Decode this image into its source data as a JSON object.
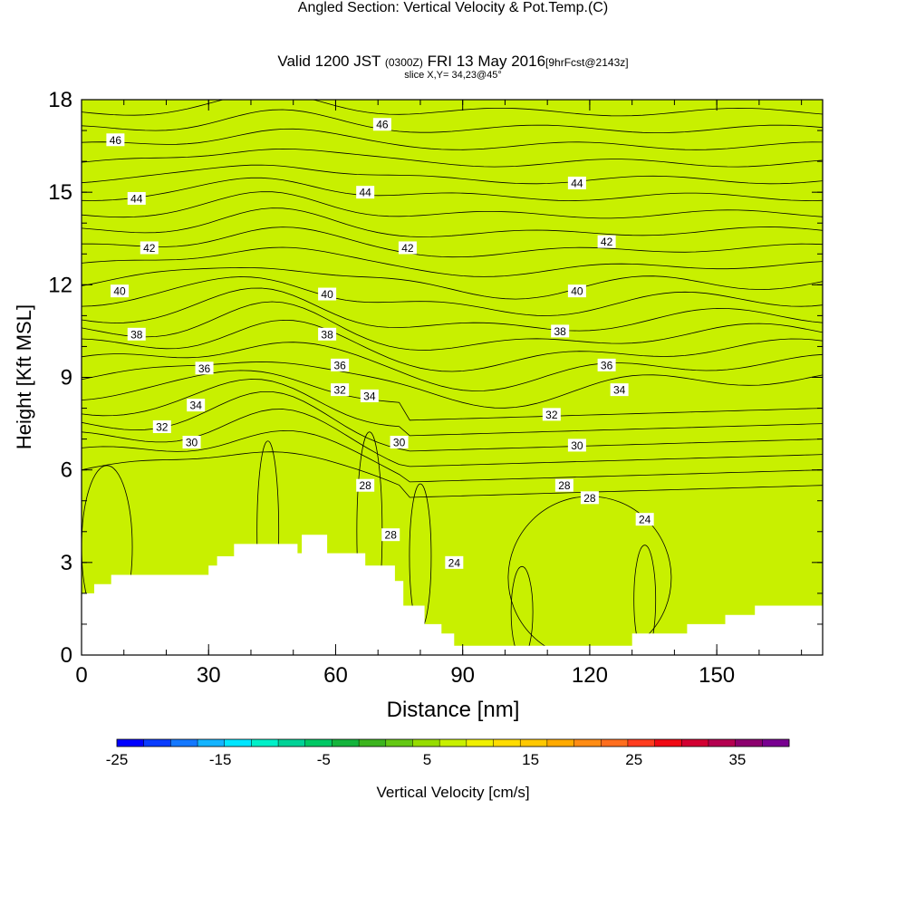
{
  "chart_data": {
    "type": "heatmap",
    "title": "Angled Section: Vertical Velocity & Pot.Temp.",
    "title_suffix": "(C)",
    "subtitle": {
      "prefix": "Valid 1200 JST",
      "utc": "(0300Z)",
      "date": "FRI 13 May 2016",
      "forecast": "[9hrFcst@2143z]"
    },
    "slice_label": "slice X,Y= 34,23@45°",
    "xlabel": "Distance [nm]",
    "ylabel": "Height [Kft MSL]",
    "xlim": [
      0,
      175
    ],
    "ylim": [
      0,
      18
    ],
    "x_ticks": [
      "0",
      "30",
      "60",
      "90",
      "120",
      "150"
    ],
    "y_ticks": [
      "0",
      "3",
      "6",
      "9",
      "12",
      "15",
      "18"
    ],
    "colorbar": {
      "label": "Vertical Velocity [cm/s]",
      "tick_labels": [
        "-25",
        "-15",
        "-5",
        "5",
        "15",
        "25",
        "35"
      ],
      "colors": [
        "#0000ff",
        "#0a3cff",
        "#1478ff",
        "#14b4ff",
        "#00e6ff",
        "#00f0c8",
        "#00d296",
        "#00c864",
        "#14b43c",
        "#3cb41e",
        "#64c814",
        "#96dc00",
        "#c8f000",
        "#f0f000",
        "#ffdc00",
        "#ffc800",
        "#ffaa00",
        "#ff8c14",
        "#ff6e1e",
        "#ff3c1e",
        "#f00a14",
        "#d20032",
        "#b40050",
        "#8c006e",
        "#780090"
      ]
    },
    "fields": {
      "velocity": "Vertical Velocity",
      "theta": "Pot.Temp."
    },
    "isentrope_labels": [
      {
        "label": "46",
        "x": 8,
        "y": 16.7
      },
      {
        "label": "46",
        "x": 71,
        "y": 17.2
      },
      {
        "label": "44",
        "x": 13,
        "y": 14.8
      },
      {
        "label": "44",
        "x": 67,
        "y": 15.0
      },
      {
        "label": "44",
        "x": 117,
        "y": 15.3
      },
      {
        "label": "42",
        "x": 16,
        "y": 13.2
      },
      {
        "label": "42",
        "x": 77,
        "y": 13.2
      },
      {
        "label": "42",
        "x": 124,
        "y": 13.4
      },
      {
        "label": "40",
        "x": 9,
        "y": 11.8
      },
      {
        "label": "40",
        "x": 58,
        "y": 11.7
      },
      {
        "label": "40",
        "x": 117,
        "y": 11.8
      },
      {
        "label": "38",
        "x": 13,
        "y": 10.4
      },
      {
        "label": "38",
        "x": 58,
        "y": 10.4
      },
      {
        "label": "38",
        "x": 113,
        "y": 10.5
      },
      {
        "label": "36",
        "x": 29,
        "y": 9.3
      },
      {
        "label": "36",
        "x": 61,
        "y": 9.4
      },
      {
        "label": "36",
        "x": 124,
        "y": 9.4
      },
      {
        "label": "34",
        "x": 27,
        "y": 8.1
      },
      {
        "label": "34",
        "x": 68,
        "y": 8.4
      },
      {
        "label": "34",
        "x": 127,
        "y": 8.6
      },
      {
        "label": "32",
        "x": 19,
        "y": 7.4
      },
      {
        "label": "32",
        "x": 61,
        "y": 8.6
      },
      {
        "label": "32",
        "x": 111,
        "y": 7.8
      },
      {
        "label": "30",
        "x": 26,
        "y": 6.9
      },
      {
        "label": "30",
        "x": 75,
        "y": 6.9
      },
      {
        "label": "30",
        "x": 117,
        "y": 6.8
      },
      {
        "label": "28",
        "x": 67,
        "y": 5.5
      },
      {
        "label": "28",
        "x": 73,
        "y": 3.9
      },
      {
        "label": "28",
        "x": 114,
        "y": 5.5
      },
      {
        "label": "28",
        "x": 120,
        "y": 5.1
      },
      {
        "label": "24",
        "x": 88,
        "y": 3.0
      },
      {
        "label": "24",
        "x": 133,
        "y": 4.4
      }
    ]
  }
}
